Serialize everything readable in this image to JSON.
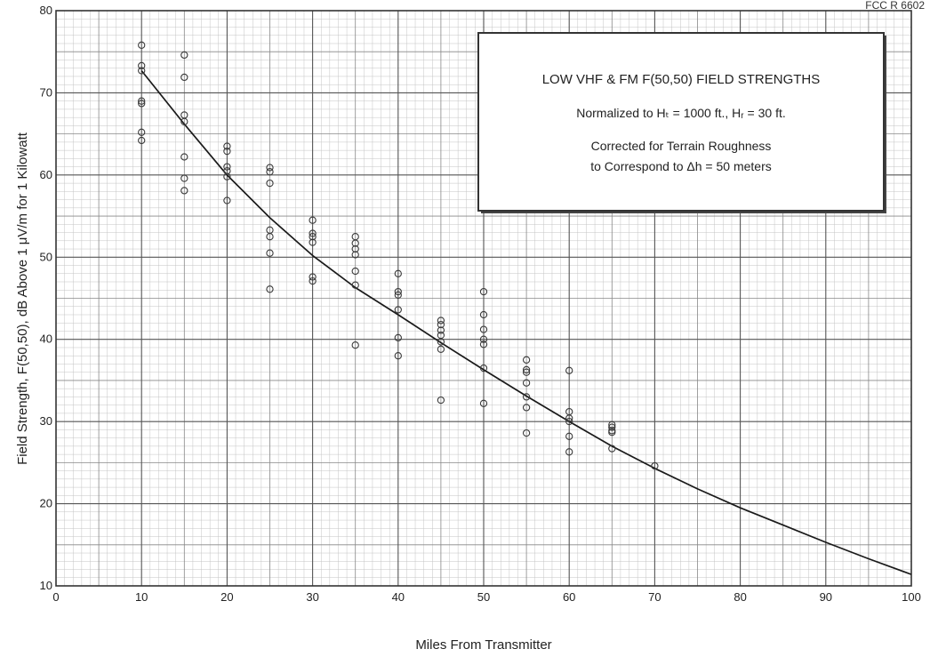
{
  "corner_id": "FCC  R  6602",
  "chart_data": {
    "type": "scatter",
    "title_box": {
      "title": "LOW VHF & FM F(50,50) FIELD STRENGTHS",
      "line2": "Normalized to Hₜ = 1000 ft.,  Hᵣ = 30 ft.",
      "line3": "Corrected for Terrain Roughness",
      "line4": "to Correspond to Δh = 50 meters"
    },
    "xlabel": "Miles From Transmitter",
    "ylabel": "Field Strength,  F(50,50),  dB Above 1 μV/m for 1 Kilowatt",
    "xlim": [
      0,
      100
    ],
    "ylim": [
      10,
      80
    ],
    "x_ticks": [
      "0",
      "10",
      "20",
      "30",
      "40",
      "50",
      "60",
      "70",
      "80",
      "90",
      "100"
    ],
    "y_ticks": [
      "10",
      "20",
      "30",
      "40",
      "50",
      "60",
      "70",
      "80"
    ],
    "grid": true,
    "series": [
      {
        "kind": "points",
        "points": [
          [
            10,
            75.8
          ],
          [
            10,
            73.3
          ],
          [
            10,
            72.7
          ],
          [
            10,
            69.0
          ],
          [
            10,
            68.7
          ],
          [
            10,
            65.2
          ],
          [
            10,
            64.2
          ],
          [
            15,
            74.6
          ],
          [
            15,
            71.9
          ],
          [
            15,
            67.3
          ],
          [
            15,
            66.5
          ],
          [
            15,
            62.2
          ],
          [
            15,
            59.6
          ],
          [
            15,
            58.1
          ],
          [
            20,
            63.5
          ],
          [
            20,
            62.9
          ],
          [
            20,
            61.0
          ],
          [
            20,
            60.5
          ],
          [
            20,
            59.8
          ],
          [
            20,
            56.9
          ],
          [
            25,
            60.9
          ],
          [
            25,
            60.4
          ],
          [
            25,
            59.0
          ],
          [
            25,
            53.3
          ],
          [
            25,
            52.5
          ],
          [
            25,
            50.5
          ],
          [
            25,
            46.1
          ],
          [
            30,
            54.5
          ],
          [
            30,
            52.9
          ],
          [
            30,
            52.5
          ],
          [
            30,
            51.8
          ],
          [
            30,
            47.6
          ],
          [
            30,
            47.1
          ],
          [
            35,
            52.5
          ],
          [
            35,
            51.7
          ],
          [
            35,
            51.0
          ],
          [
            35,
            50.3
          ],
          [
            35,
            48.3
          ],
          [
            35,
            46.6
          ],
          [
            35,
            39.3
          ],
          [
            40,
            48.0
          ],
          [
            40,
            45.8
          ],
          [
            40,
            45.4
          ],
          [
            40,
            43.6
          ],
          [
            40,
            40.2
          ],
          [
            40,
            38.0
          ],
          [
            45,
            42.3
          ],
          [
            45,
            41.8
          ],
          [
            45,
            41.1
          ],
          [
            45,
            40.5
          ],
          [
            45,
            39.7
          ],
          [
            45,
            38.8
          ],
          [
            45,
            32.6
          ],
          [
            50,
            45.8
          ],
          [
            50,
            43.0
          ],
          [
            50,
            41.2
          ],
          [
            50,
            40.0
          ],
          [
            50,
            39.4
          ],
          [
            50,
            36.5
          ],
          [
            50,
            32.2
          ],
          [
            55,
            37.5
          ],
          [
            55,
            36.3
          ],
          [
            55,
            36.0
          ],
          [
            55,
            34.7
          ],
          [
            55,
            33.0
          ],
          [
            55,
            31.7
          ],
          [
            55,
            28.6
          ],
          [
            60,
            36.2
          ],
          [
            60,
            31.2
          ],
          [
            60,
            30.4
          ],
          [
            60,
            30.0
          ],
          [
            60,
            28.2
          ],
          [
            60,
            26.3
          ],
          [
            65,
            29.6
          ],
          [
            65,
            29.3
          ],
          [
            65,
            28.9
          ],
          [
            65,
            28.7
          ],
          [
            65,
            26.7
          ],
          [
            70,
            24.6
          ]
        ]
      },
      {
        "kind": "curve",
        "x": [
          10,
          15,
          20,
          25,
          30,
          35,
          40,
          45,
          50,
          55,
          60,
          65,
          70,
          75,
          80,
          85,
          90,
          95,
          100
        ],
        "y": [
          72.7,
          66.2,
          60.0,
          54.8,
          50.2,
          46.3,
          43.0,
          39.6,
          36.3,
          33.1,
          30.0,
          27.0,
          24.3,
          21.8,
          19.5,
          17.4,
          15.3,
          13.3,
          11.4
        ]
      }
    ]
  }
}
